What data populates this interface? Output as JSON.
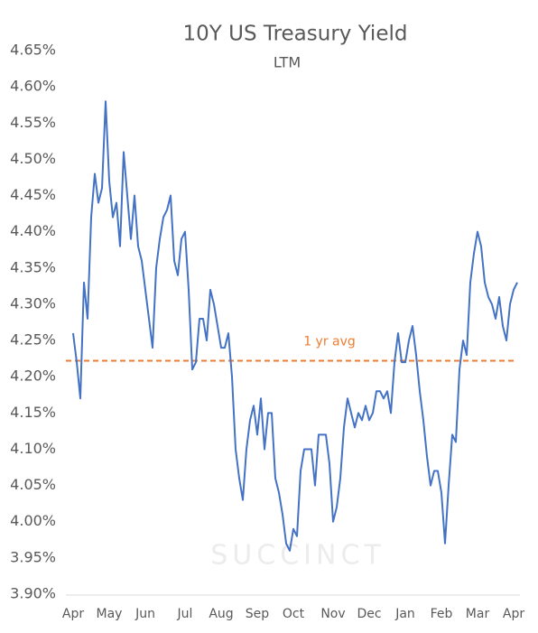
{
  "chart_data": {
    "type": "line",
    "title": "10Y US Treasury Yield",
    "subtitle": "LTM",
    "watermark": "SUCCINCT",
    "categories": [
      "Apr",
      null,
      null,
      null,
      null,
      null,
      null,
      null,
      null,
      null,
      "May",
      null,
      null,
      null,
      null,
      null,
      null,
      null,
      null,
      null,
      "Jun",
      null,
      null,
      null,
      null,
      null,
      null,
      null,
      null,
      null,
      null,
      "Jul",
      null,
      null,
      null,
      null,
      null,
      null,
      null,
      null,
      null,
      "Aug",
      null,
      null,
      null,
      null,
      null,
      null,
      null,
      null,
      null,
      "Sep",
      null,
      null,
      null,
      null,
      null,
      null,
      null,
      null,
      null,
      "Oct",
      null,
      null,
      null,
      null,
      null,
      null,
      null,
      null,
      null,
      null,
      "Nov",
      null,
      null,
      null,
      null,
      null,
      null,
      null,
      null,
      null,
      "Dec",
      null,
      null,
      null,
      null,
      null,
      null,
      null,
      null,
      null,
      "Jan",
      null,
      null,
      null,
      null,
      null,
      null,
      null,
      null,
      null,
      "Feb",
      null,
      null,
      null,
      null,
      null,
      null,
      null,
      null,
      null,
      "Mar",
      null,
      null,
      null,
      null,
      null,
      null,
      null,
      null,
      null,
      "Apr",
      null
    ],
    "values": [
      4.26,
      4.22,
      4.17,
      4.33,
      4.28,
      4.42,
      4.48,
      4.44,
      4.46,
      4.58,
      4.47,
      4.42,
      4.44,
      4.38,
      4.51,
      4.45,
      4.39,
      4.45,
      4.38,
      4.36,
      4.32,
      4.28,
      4.24,
      4.35,
      4.39,
      4.42,
      4.43,
      4.45,
      4.36,
      4.34,
      4.39,
      4.4,
      4.32,
      4.21,
      4.22,
      4.28,
      4.28,
      4.25,
      4.32,
      4.3,
      4.27,
      4.24,
      4.24,
      4.26,
      4.2,
      4.1,
      4.06,
      4.03,
      4.1,
      4.14,
      4.16,
      4.12,
      4.17,
      4.1,
      4.15,
      4.15,
      4.06,
      4.04,
      4.01,
      3.97,
      3.96,
      3.99,
      3.98,
      4.07,
      4.1,
      4.1,
      4.1,
      4.05,
      4.12,
      4.12,
      4.12,
      4.08,
      4.0,
      4.02,
      4.06,
      4.13,
      4.17,
      4.15,
      4.13,
      4.15,
      4.14,
      4.16,
      4.14,
      4.15,
      4.18,
      4.18,
      4.17,
      4.18,
      4.15,
      4.22,
      4.26,
      4.22,
      4.22,
      4.25,
      4.27,
      4.23,
      4.18,
      4.14,
      4.09,
      4.05,
      4.07,
      4.07,
      4.04,
      3.97,
      4.05,
      4.12,
      4.11,
      4.21,
      4.25,
      4.23,
      4.33,
      4.37,
      4.4,
      4.38,
      4.33,
      4.31,
      4.3,
      4.28,
      4.31,
      4.27,
      4.25,
      4.3,
      4.32,
      4.33
    ],
    "color": "#4472c4",
    "average": {
      "value": 4.222,
      "label": "1 yr avg",
      "color": "#ed7d31"
    },
    "ylim": [
      3.9,
      4.65
    ],
    "yticks": [
      {
        "value": 3.9,
        "label": "3.90%"
      },
      {
        "value": 3.95,
        "label": "3.95%"
      },
      {
        "value": 4.0,
        "label": "4.00%"
      },
      {
        "value": 4.05,
        "label": "4.05%"
      },
      {
        "value": 4.1,
        "label": "4.10%"
      },
      {
        "value": 4.15,
        "label": "4.15%"
      },
      {
        "value": 4.2,
        "label": "4.20%"
      },
      {
        "value": 4.25,
        "label": "4.25%"
      },
      {
        "value": 4.3,
        "label": "4.30%"
      },
      {
        "value": 4.35,
        "label": "4.35%"
      },
      {
        "value": 4.4,
        "label": "4.40%"
      },
      {
        "value": 4.45,
        "label": "4.45%"
      },
      {
        "value": 4.5,
        "label": "4.50%"
      },
      {
        "value": 4.55,
        "label": "4.55%"
      },
      {
        "value": 4.6,
        "label": "4.60%"
      },
      {
        "value": 4.65,
        "label": "4.65%"
      }
    ],
    "grid": false
  }
}
